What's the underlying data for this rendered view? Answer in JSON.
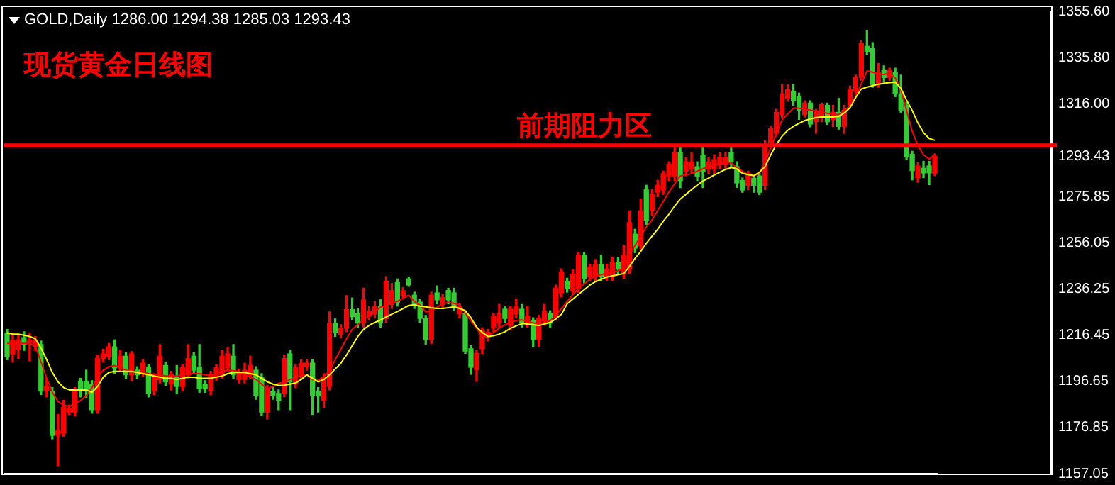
{
  "chart_data": {
    "type": "candlestick",
    "title": "现货黄金日线图",
    "annotations": [
      "GOLD,Daily 1286.00 1294.38 1285.03 1293.43"
    ],
    "categories": [
      null,
      null,
      null,
      null,
      null,
      null,
      null,
      null,
      null,
      null,
      null,
      null,
      null,
      null,
      null,
      null,
      null,
      null,
      null,
      null,
      null,
      null,
      null,
      null,
      null,
      null,
      null,
      null,
      null,
      null,
      null,
      null,
      null,
      null,
      null,
      null,
      null,
      null,
      null,
      null,
      null,
      null,
      null,
      null,
      null,
      null,
      null,
      null,
      null,
      null,
      null,
      null,
      null,
      null,
      null,
      null,
      null,
      null,
      null,
      null,
      null,
      null,
      null,
      null,
      null,
      null,
      null,
      null,
      null,
      null,
      null,
      null,
      null,
      null,
      null,
      null,
      null,
      null,
      null,
      null,
      null,
      null,
      null,
      null,
      null,
      null,
      null,
      null,
      null,
      null,
      null,
      null,
      null,
      null,
      null,
      null,
      null,
      null,
      null,
      null,
      null,
      null,
      null,
      null,
      null,
      null,
      null,
      null,
      null,
      null,
      null,
      null,
      null,
      null,
      null,
      null,
      null,
      null,
      null,
      null,
      null,
      null,
      null,
      null,
      null,
      null,
      null,
      null,
      null,
      null,
      null,
      null,
      null,
      null,
      null,
      null,
      null,
      null,
      null,
      null,
      null,
      null,
      null,
      null,
      null,
      null,
      null,
      null,
      null,
      null,
      null,
      null,
      null,
      null,
      null,
      null,
      null,
      null,
      null,
      null,
      null,
      null,
      null,
      null,
      null
    ],
    "ohlc": [
      [
        1217.5,
        1219,
        1206,
        1207.5
      ],
      [
        1208.5,
        1217,
        1205,
        1214.5
      ],
      [
        1210.5,
        1216.5,
        1206.5,
        1214.5
      ],
      [
        1215.5,
        1218,
        1210,
        1212.5
      ],
      [
        1213.5,
        1217.5,
        1205.5,
        1214.5
      ],
      [
        1211.5,
        1216,
        1210,
        1214.5
      ],
      [
        1212.5,
        1214,
        1191,
        1192.5
      ],
      [
        1192.5,
        1198,
        1190,
        1194.5
      ],
      [
        1192.5,
        1194,
        1172,
        1173.5
      ],
      [
        1173.5,
        1182.5,
        1160.5,
        1175.5
      ],
      [
        1174.5,
        1188.5,
        1173,
        1185.5
      ],
      [
        1183.5,
        1186.5,
        1182.5,
        1184.9
      ],
      [
        1183.5,
        1194,
        1182,
        1192.5
      ],
      [
        1196.5,
        1198,
        1190,
        1193.5
      ],
      [
        1196.5,
        1201.5,
        1189.5,
        1192.5
      ],
      [
        1195.5,
        1197,
        1183,
        1184.5
      ],
      [
        1184.5,
        1208,
        1183,
        1206.5
      ],
      [
        1206.5,
        1210.5,
        1205,
        1208.5
      ],
      [
        1207.5,
        1213,
        1206,
        1211.5
      ],
      [
        1211.5,
        1214.5,
        1200,
        1202.5
      ],
      [
        1202.5,
        1210,
        1201,
        1207.5
      ],
      [
        1207.5,
        1209,
        1198,
        1199.5
      ],
      [
        1199.5,
        1209.5,
        1197,
        1208.5
      ],
      [
        1201.5,
        1203,
        1198,
        1199.5
      ],
      [
        1200.5,
        1206,
        1199,
        1204.5
      ],
      [
        1202.5,
        1204,
        1190,
        1191.5
      ],
      [
        1192.5,
        1200,
        1191,
        1198.5
      ],
      [
        1197.5,
        1212.5,
        1196,
        1207.5
      ],
      [
        1203.5,
        1205,
        1195,
        1196.5
      ],
      [
        1195.5,
        1201,
        1193,
        1199.5
      ],
      [
        1198.5,
        1203.5,
        1191.5,
        1194.5
      ],
      [
        1194.5,
        1204,
        1192.5,
        1202.5
      ],
      [
        1199.5,
        1212.5,
        1198,
        1206.5
      ],
      [
        1207.5,
        1209,
        1200,
        1201.5
      ],
      [
        1202.5,
        1212.5,
        1192,
        1193.5
      ],
      [
        1195.5,
        1197,
        1192,
        1193.5
      ],
      [
        1192.5,
        1201,
        1191,
        1199.5
      ],
      [
        1198.5,
        1204,
        1197,
        1202.5
      ],
      [
        1199.5,
        1210,
        1198,
        1207.5
      ],
      [
        1202.5,
        1211,
        1201,
        1208.5
      ],
      [
        1207.5,
        1212.5,
        1198,
        1199.5
      ],
      [
        1197.5,
        1202,
        1196,
        1200.5
      ],
      [
        1197.5,
        1204.5,
        1196,
        1201.5
      ],
      [
        1199.5,
        1207.5,
        1198,
        1203.5
      ],
      [
        1201.5,
        1203,
        1189,
        1190.5
      ],
      [
        1198.5,
        1200,
        1182,
        1183.5
      ],
      [
        1183.5,
        1195,
        1180.5,
        1193.5
      ],
      [
        1192.5,
        1194,
        1189,
        1190.5
      ],
      [
        1191.5,
        1193,
        1184.5,
        1188.5
      ],
      [
        1191.5,
        1208,
        1190,
        1206.5
      ],
      [
        1208.5,
        1210,
        1184.5,
        1196.5
      ],
      [
        1195.5,
        1204,
        1194,
        1202.5
      ],
      [
        1199.5,
        1206,
        1198,
        1204.5
      ],
      [
        1202.9,
        1206,
        1201.5,
        1204.5
      ],
      [
        1204.5,
        1206,
        1182.5,
        1190.5
      ],
      [
        1192.5,
        1194,
        1183.5,
        1190.5
      ],
      [
        1188.5,
        1200,
        1185.5,
        1198.5
      ],
      [
        1194.5,
        1226.5,
        1193,
        1221.5
      ],
      [
        1221.5,
        1223.5,
        1216,
        1217.5
      ],
      [
        1216.9,
        1221,
        1215.5,
        1219.5
      ],
      [
        1219.5,
        1233.5,
        1218,
        1227.5
      ],
      [
        1227.5,
        1232.5,
        1223,
        1224.5
      ],
      [
        1225.7,
        1228,
        1220,
        1221.7
      ],
      [
        1221.7,
        1236.7,
        1220,
        1231.7
      ],
      [
        1224.7,
        1229,
        1223,
        1226.7
      ],
      [
        1225.7,
        1231,
        1224,
        1228.7
      ],
      [
        1228.7,
        1231.7,
        1220,
        1221.7
      ],
      [
        1223.7,
        1241.7,
        1222,
        1239.7
      ],
      [
        1229.7,
        1238.7,
        1228,
        1235.7
      ],
      [
        1239.1,
        1240.7,
        1229,
        1230.7
      ],
      [
        1233.7,
        1237,
        1232,
        1235.7
      ],
      [
        1240.7,
        1241.5,
        1237.5,
        1238.1
      ],
      [
        1233.7,
        1235,
        1228,
        1229.7
      ],
      [
        1230.7,
        1232,
        1222,
        1223.7
      ],
      [
        1223.7,
        1225,
        1212.7,
        1214.7
      ],
      [
        1214.7,
        1235,
        1213,
        1233.7
      ],
      [
        1234.7,
        1237.7,
        1230,
        1231.7
      ],
      [
        1229.7,
        1234,
        1228,
        1232.7
      ],
      [
        1235.7,
        1236.7,
        1230,
        1231.7
      ],
      [
        1234.7,
        1236.7,
        1227,
        1228.7
      ],
      [
        1225.7,
        1230,
        1224,
        1228.7
      ],
      [
        1225.7,
        1227,
        1208.7,
        1209.7
      ],
      [
        1210.7,
        1212,
        1199.7,
        1202.7
      ],
      [
        1201.7,
        1210,
        1196.7,
        1208.7
      ],
      [
        1210.7,
        1219.7,
        1208.7,
        1218.7
      ],
      [
        1215.7,
        1219,
        1214,
        1217.7
      ],
      [
        1219.7,
        1226,
        1218,
        1224.7
      ],
      [
        1221.7,
        1229.7,
        1220,
        1225.7
      ],
      [
        1227.7,
        1229,
        1222,
        1223.7
      ],
      [
        1220.7,
        1229,
        1219,
        1227.7
      ],
      [
        1225.7,
        1232,
        1224,
        1228.7
      ],
      [
        1227.7,
        1229.7,
        1220,
        1221.7
      ],
      [
        1221.7,
        1228.7,
        1220,
        1224.7
      ],
      [
        1222.7,
        1224,
        1211.7,
        1214.7
      ],
      [
        1214.7,
        1225,
        1211.7,
        1223.7
      ],
      [
        1222.7,
        1229.7,
        1221,
        1226.7
      ],
      [
        1225.7,
        1227,
        1220,
        1221.7
      ],
      [
        1224.7,
        1238,
        1223,
        1236.7
      ],
      [
        1234.7,
        1245,
        1233,
        1243.7
      ],
      [
        1239.7,
        1241,
        1235,
        1236.7
      ],
      [
        1235.7,
        1244.7,
        1234,
        1242.7
      ],
      [
        1236.7,
        1252,
        1235,
        1250.7
      ],
      [
        1250.7,
        1252,
        1239,
        1240.7
      ],
      [
        1241.7,
        1247,
        1240,
        1245.7
      ],
      [
        1241.9,
        1249,
        1240,
        1246.9
      ],
      [
        1246.9,
        1250.9,
        1240,
        1241.9
      ],
      [
        1241.9,
        1247,
        1240,
        1244.9
      ],
      [
        1241.9,
        1250,
        1240,
        1247.9
      ],
      [
        1247.9,
        1250,
        1243,
        1244.9
      ],
      [
        1242.9,
        1254.9,
        1241,
        1250.9
      ],
      [
        1244.9,
        1269.9,
        1243,
        1264.9
      ],
      [
        1259.9,
        1262,
        1252,
        1253.9
      ],
      [
        1254.9,
        1274.9,
        1253,
        1269.9
      ],
      [
        1278.9,
        1280.9,
        1264,
        1265.9
      ],
      [
        1269.9,
        1279,
        1268,
        1276.9
      ],
      [
        1277.9,
        1283,
        1276,
        1280.9
      ],
      [
        1278.9,
        1287,
        1277,
        1285.9
      ],
      [
        1284.9,
        1291,
        1283,
        1289.9
      ],
      [
        1284.9,
        1296.9,
        1283,
        1294.9
      ],
      [
        1294.9,
        1296.9,
        1279.9,
        1282.9
      ],
      [
        1286.9,
        1293,
        1285,
        1290.9
      ],
      [
        1287.9,
        1294.9,
        1286,
        1290.9
      ],
      [
        1288.9,
        1291,
        1283,
        1284.9
      ],
      [
        1293.9,
        1296.9,
        1279.9,
        1286.9
      ],
      [
        1287.9,
        1293,
        1286,
        1290.9
      ],
      [
        1287.9,
        1294,
        1286,
        1291.9
      ],
      [
        1289.9,
        1294.9,
        1288,
        1292.9
      ],
      [
        1289.9,
        1295,
        1288,
        1292.9
      ],
      [
        1294.9,
        1296.9,
        1289,
        1290.9
      ],
      [
        1288.9,
        1291,
        1280,
        1281.9
      ],
      [
        1282.9,
        1284,
        1277.9,
        1278.9
      ],
      [
        1280.9,
        1287,
        1279,
        1285.9
      ],
      [
        1283.9,
        1285,
        1277.9,
        1280.9
      ],
      [
        1284.9,
        1286,
        1276.9,
        1277.9
      ],
      [
        1280.9,
        1300,
        1279,
        1297.9
      ],
      [
        1299.2,
        1306.2,
        1298,
        1305.2
      ],
      [
        1303.2,
        1313.5,
        1302,
        1312.2
      ],
      [
        1311.2,
        1324.2,
        1310,
        1320.2
      ],
      [
        1318.2,
        1324.2,
        1317,
        1322.2
      ],
      [
        1321.2,
        1324.2,
        1315.2,
        1317.2
      ],
      [
        1319.2,
        1320.5,
        1309.2,
        1313.2
      ],
      [
        1311.2,
        1317.2,
        1310.2,
        1316.2
      ],
      [
        1316.2,
        1317.2,
        1306,
        1307.2
      ],
      [
        1308.2,
        1313.5,
        1303.2,
        1312.2
      ],
      [
        1310.2,
        1316.2,
        1308.2,
        1315.6
      ],
      [
        1315.2,
        1316.2,
        1307,
        1308.2
      ],
      [
        1309.2,
        1315.2,
        1306.2,
        1312.2
      ],
      [
        1312.2,
        1318.2,
        1305,
        1306.2
      ],
      [
        1306.2,
        1315.2,
        1303.2,
        1313.2
      ],
      [
        1315.2,
        1323.5,
        1314,
        1322.2
      ],
      [
        1321.2,
        1328.2,
        1320,
        1327.2
      ],
      [
        1327.2,
        1343,
        1326,
        1341.8
      ],
      [
        1340.6,
        1347.2,
        1337.2,
        1338.2
      ],
      [
        1339.6,
        1342.2,
        1323,
        1324.2
      ],
      [
        1324.2,
        1333.2,
        1323,
        1329.2
      ],
      [
        1330.2,
        1332.2,
        1325.2,
        1327.2
      ],
      [
        1327.2,
        1331.2,
        1326,
        1330.2
      ],
      [
        1329.2,
        1331.2,
        1319,
        1320.2
      ],
      [
        1320.2,
        1328.2,
        1312,
        1313.2
      ],
      [
        1315.2,
        1316.5,
        1292,
        1293.2
      ],
      [
        1294.2,
        1295.5,
        1283.2,
        1287.2
      ],
      [
        1284.2,
        1290.5,
        1282.2,
        1289.2
      ],
      [
        1288.2,
        1291.2,
        1284.2,
        1286.2
      ],
      [
        1289.2,
        1291.2,
        1281.2,
        1286.2
      ],
      [
        1286.0,
        1294.38,
        1285.03,
        1293.43
      ]
    ],
    "colors": [
      "#32cd32",
      "#ff0000",
      "#ff0000",
      "#32cd32",
      "#ff0000",
      "#ff0000",
      "#32cd32",
      "#ff0000",
      "#32cd32",
      "#ff0000",
      "#ff0000",
      "#ff0000",
      "#ff0000",
      "#32cd32",
      "#32cd32",
      "#32cd32",
      "#ff0000",
      "#ff0000",
      "#ff0000",
      "#32cd32",
      "#ff0000",
      "#32cd32",
      "#ff0000",
      "#32cd32",
      "#ff0000",
      "#32cd32",
      "#ff0000",
      "#ff0000",
      "#32cd32",
      "#ff0000",
      "#32cd32",
      "#ff0000",
      "#ff0000",
      "#32cd32",
      "#32cd32",
      "#32cd32",
      "#ff0000",
      "#ff0000",
      "#ff0000",
      "#ff0000",
      "#32cd32",
      "#ff0000",
      "#ff0000",
      "#ff0000",
      "#32cd32",
      "#32cd32",
      "#ff0000",
      "#32cd32",
      "#32cd32",
      "#ff0000",
      "#32cd32",
      "#ff0000",
      "#ff0000",
      "#ff0000",
      "#32cd32",
      "#32cd32",
      "#ff0000",
      "#ff0000",
      "#32cd32",
      "#ff0000",
      "#ff0000",
      "#32cd32",
      "#32cd32",
      "#ff0000",
      "#ff0000",
      "#ff0000",
      "#32cd32",
      "#ff0000",
      "#ff0000",
      "#32cd32",
      "#ff0000",
      "#32cd32",
      "#32cd32",
      "#32cd32",
      "#32cd32",
      "#ff0000",
      "#32cd32",
      "#ff0000",
      "#32cd32",
      "#32cd32",
      "#ff0000",
      "#32cd32",
      "#32cd32",
      "#ff0000",
      "#ff0000",
      "#ff0000",
      "#ff0000",
      "#ff0000",
      "#32cd32",
      "#ff0000",
      "#ff0000",
      "#32cd32",
      "#ff0000",
      "#32cd32",
      "#ff0000",
      "#ff0000",
      "#32cd32",
      "#ff0000",
      "#ff0000",
      "#32cd32",
      "#ff0000",
      "#ff0000",
      "#32cd32",
      "#ff0000",
      "#ff0000",
      "#32cd32",
      "#ff0000",
      "#ff0000",
      "#32cd32",
      "#ff0000",
      "#ff0000",
      "#32cd32",
      "#ff0000",
      "#32cd32",
      "#ff0000",
      "#ff0000",
      "#ff0000",
      "#ff0000",
      "#ff0000",
      "#32cd32",
      "#ff0000",
      "#ff0000",
      "#32cd32",
      "#32cd32",
      "#ff0000",
      "#ff0000",
      "#ff0000",
      "#ff0000",
      "#32cd32",
      "#32cd32",
      "#32cd32",
      "#ff0000",
      "#32cd32",
      "#32cd32",
      "#ff0000",
      "#ff0000",
      "#ff0000",
      "#ff0000",
      "#ff0000",
      "#32cd32",
      "#32cd32",
      "#ff0000",
      "#32cd32",
      "#ff0000",
      "#ff0000",
      "#32cd32",
      "#ff0000",
      "#32cd32",
      "#ff0000",
      "#ff0000",
      "#ff0000",
      "#ff0000",
      "#32cd32",
      "#32cd32",
      "#ff0000",
      "#32cd32",
      "#ff0000",
      "#32cd32",
      "#32cd32",
      "#32cd32",
      "#32cd32",
      "#ff0000",
      "#32cd32",
      "#32cd32",
      "#ff0000"
    ],
    "series": [
      {
        "type": "line",
        "color": "#ffff00",
        "values": [
          1217.5,
          1217,
          1217,
          1216.5,
          1216,
          1215,
          1211,
          1206,
          1200.5,
          1196.5,
          1194,
          1193,
          1193,
          1193,
          1193,
          1192,
          1194.5,
          1198.5,
          1200.5,
          1201,
          1201,
          1201,
          1201,
          1200.5,
          1200,
          1199.5,
          1199,
          1198.5,
          1198,
          1198,
          1197.5,
          1198,
          1198.5,
          1198.5,
          1198,
          1198,
          1198,
          1198.5,
          1199,
          1200,
          1200.5,
          1200.5,
          1200.5,
          1200,
          1199.5,
          1198,
          1196.5,
          1195.5,
          1195,
          1195,
          1195.5,
          1196,
          1197.5,
          1199.5,
          1198,
          1196.5,
          1197.5,
          1199.5,
          1202,
          1204.5,
          1208,
          1212,
          1216,
          1219,
          1220.7,
          1222,
          1223,
          1224.3,
          1225.5,
          1226.7,
          1228,
          1229.3,
          1229.5,
          1229,
          1228.7,
          1228.3,
          1228,
          1228,
          1228.3,
          1228.7,
          1228,
          1227,
          1224,
          1220,
          1217.7,
          1216,
          1216.3,
          1217,
          1218,
          1219.5,
          1220.5,
          1221.5,
          1221.3,
          1221,
          1220.7,
          1221.3,
          1222,
          1223.5,
          1225.5,
          1230,
          1232,
          1234,
          1236,
          1238,
          1239.5,
          1240.5,
          1241.5,
          1242,
          1242.5,
          1243,
          1246,
          1249.5,
          1252.5,
          1256,
          1259,
          1262,
          1265.5,
          1268.5,
          1272,
          1275,
          1277,
          1279,
          1281,
          1282.7,
          1284,
          1285.3,
          1286.5,
          1287.7,
          1288.5,
          1288,
          1286,
          1285.5,
          1285,
          1286.5,
          1289,
          1294,
          1298.5,
          1302,
          1304.5,
          1306.2,
          1307.5,
          1308.7,
          1309.4,
          1310,
          1310.2,
          1310.2,
          1310.2,
          1310.5,
          1312,
          1314.2,
          1318.5,
          1322.3,
          1323,
          1323.7,
          1324.3,
          1324.7,
          1325,
          1325.2,
          1322.5,
          1317.5,
          1313,
          1307.7,
          1303.5,
          1301,
          1300.2
        ]
      },
      {
        "type": "line",
        "color": "#ff0000",
        "values": [
          1213,
          1213,
          1213,
          1213,
          1213,
          1212,
          1205,
          1198,
          1192,
          1188,
          1186.5,
          1186,
          1187,
          1188.5,
          1190.5,
          1194,
          1198.5,
          1201.5,
          1203,
          1203.5,
          1202.5,
          1201.5,
          1201,
          1200.5,
          1200.5,
          1200,
          1199.5,
          1199.5,
          1199,
          1199,
          1199,
          1199.5,
          1200,
          1200,
          1200,
          1199.5,
          1199,
          1200,
          1201,
          1201.5,
          1201.3,
          1201,
          1199.5,
          1198.5,
          1197.5,
          1195.5,
          1193.5,
          1194.5,
          1195.8,
          1196.5,
          1197.5,
          1198.3,
          1199,
          1199.5,
          1197.5,
          1197,
          1199,
          1201,
          1206,
          1210.5,
          1215,
          1219,
          1221,
          1223.2,
          1224.7,
          1226.5,
          1228.5,
          1229.5,
          1230.3,
          1231,
          1232.5,
          1233.7,
          1231,
          1229.5,
          1226.5,
          1227,
          1228.5,
          1230,
          1230.5,
          1230.2,
          1229.5,
          1226,
          1222.7,
          1219.5,
          1216,
          1216.5,
          1217.7,
          1219.5,
          1221,
          1222,
          1222.8,
          1223.1,
          1222.5,
          1221.8,
          1221.3,
          1222,
          1222.7,
          1225,
          1228,
          1231,
          1234,
          1236.5,
          1238.5,
          1240.5,
          1242,
          1242.5,
          1243,
          1243.5,
          1244.2,
          1245,
          1251,
          1255,
          1259,
          1263,
          1266,
          1270,
          1274,
          1278,
          1281.5,
          1284.9,
          1285.4,
          1285.9,
          1287,
          1288,
          1288.9,
          1289.5,
          1290,
          1290.7,
          1290.5,
          1288.5,
          1286.9,
          1285.5,
          1285,
          1286,
          1291,
          1297,
          1303,
          1309,
          1311.5,
          1314,
          1314,
          1313.5,
          1313.2,
          1312.8,
          1312.2,
          1311.8,
          1311.5,
          1311.2,
          1313,
          1315,
          1319,
          1324.5,
          1330,
          1329.5,
          1328.5,
          1328.5,
          1329,
          1327,
          1322,
          1313,
          1304,
          1298,
          1294,
          1292.2,
          1294.2
        ]
      }
    ],
    "ylim": [
      1157.05,
      1355.6
    ],
    "yticks": [
      {
        "value": 1157.05,
        "label": "1157.05"
      },
      {
        "value": 1176.85,
        "label": "1176.85"
      },
      {
        "value": 1196.65,
        "label": "1196.65"
      },
      {
        "value": 1216.45,
        "label": "1216.45"
      },
      {
        "value": 1236.25,
        "label": "1236.25"
      },
      {
        "value": 1256.05,
        "label": "1256.05"
      },
      {
        "value": 1275.85,
        "label": "1275.85"
      },
      {
        "value": 1293.43,
        "label": "1293.43"
      },
      {
        "value": 1316,
        "label": "1316.00"
      },
      {
        "value": 1335.8,
        "label": "1335.80"
      },
      {
        "value": 1355.6,
        "label": "1355.60"
      }
    ],
    "ref_lines": [
      {
        "axis": "y",
        "value": 1298,
        "label": "前期阻力区",
        "color": "#ff0000"
      }
    ]
  }
}
